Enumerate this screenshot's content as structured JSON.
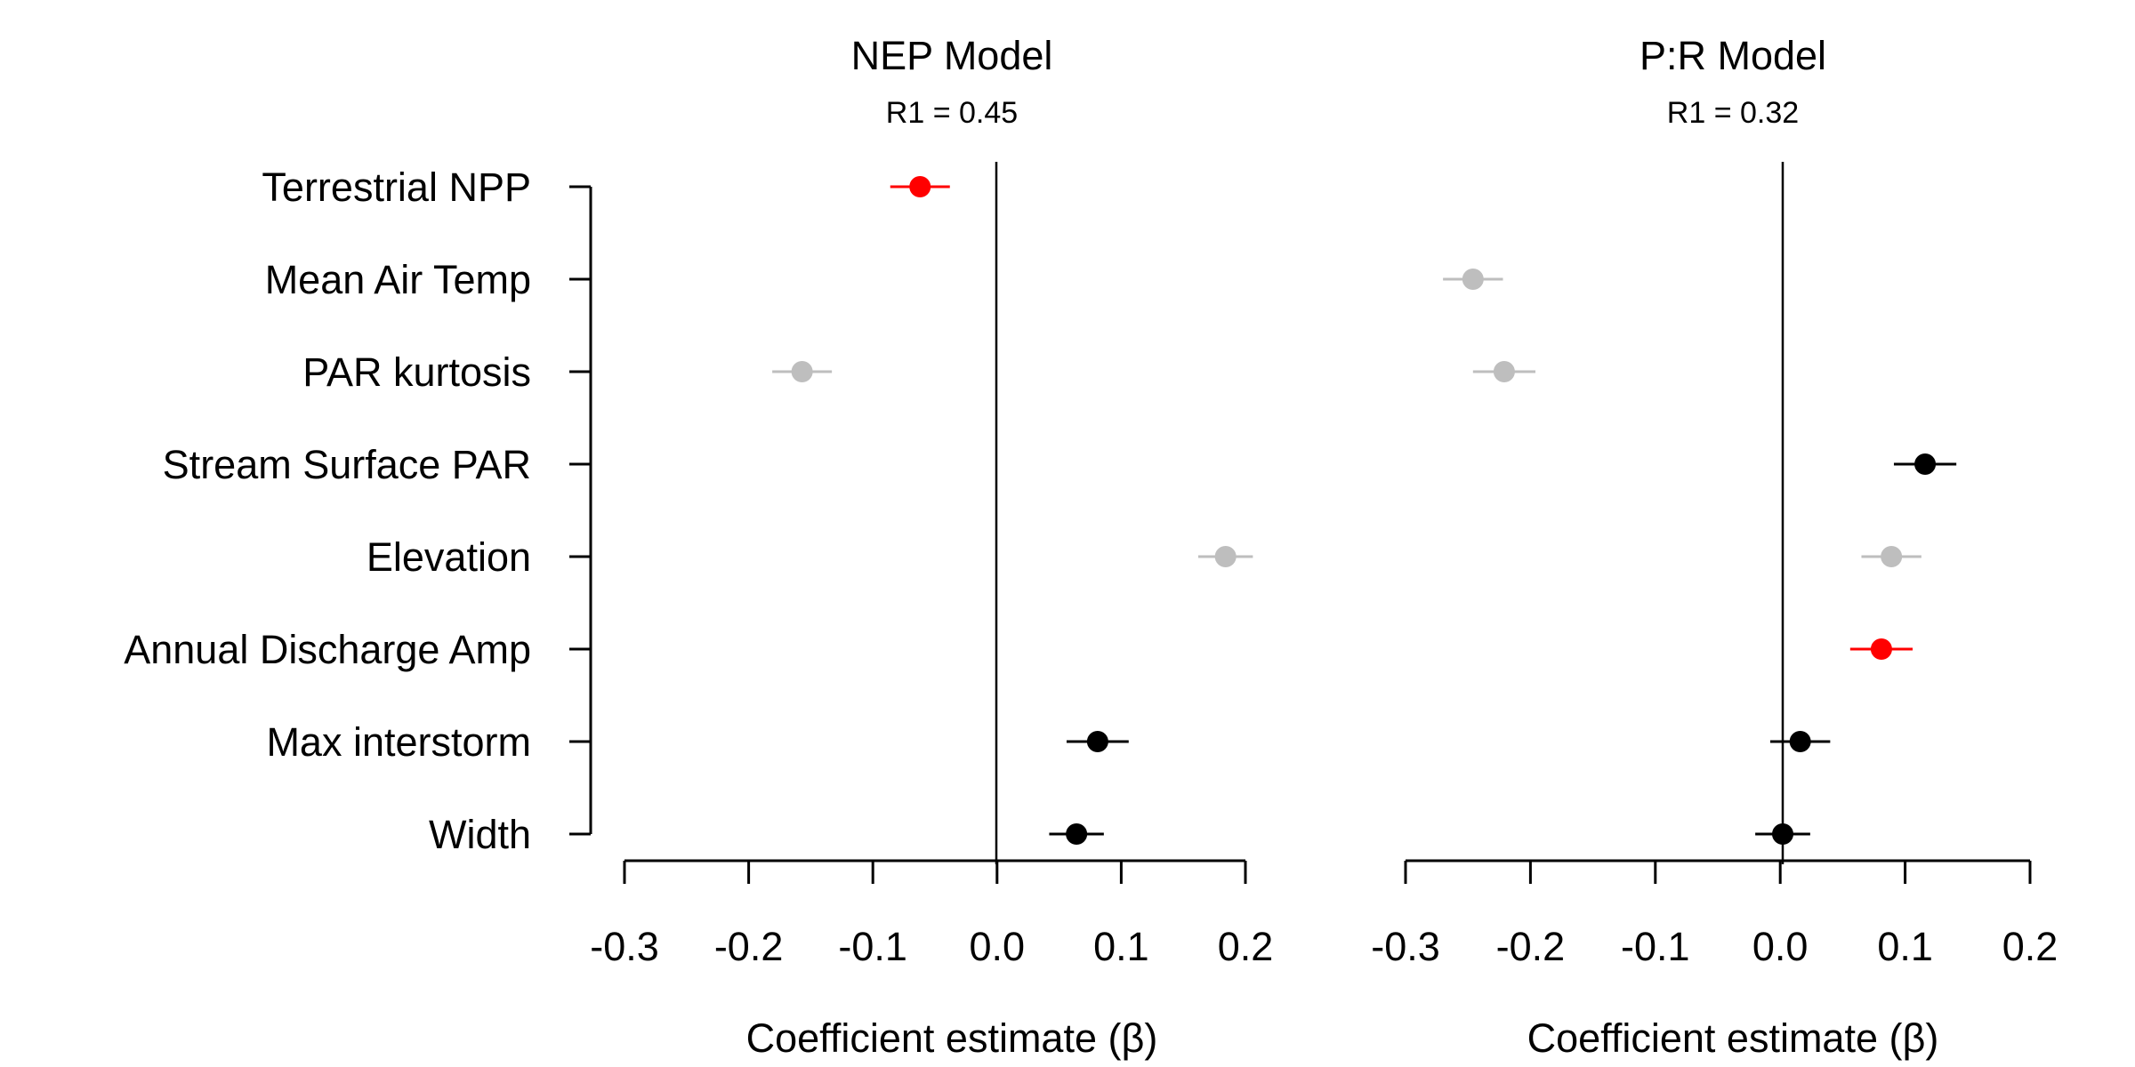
{
  "chart_data": [
    {
      "type": "scatter",
      "title": "NEP Model",
      "subtitle": "R1 = 0.45",
      "xlabel": "Coefficient estimate (β)",
      "ylabel": "",
      "xlim": [
        -0.3,
        0.2
      ],
      "xticks": [
        "-0.3",
        "-0.2",
        "-0.1",
        "0.0",
        "0.1",
        "0.2"
      ],
      "grid": false,
      "points": [
        {
          "label": "Terrestrial NPP",
          "estimate": -0.062,
          "low": -0.086,
          "high": -0.038,
          "color": "#ff0000"
        },
        {
          "label": "PAR kurtosis",
          "estimate": -0.157,
          "low": -0.181,
          "high": -0.133,
          "color": "#bebebe"
        },
        {
          "label": "Elevation",
          "estimate": 0.184,
          "low": 0.162,
          "high": 0.206,
          "color": "#bebebe"
        },
        {
          "label": "Max interstorm",
          "estimate": 0.081,
          "low": 0.056,
          "high": 0.106,
          "color": "#000000"
        },
        {
          "label": "Width",
          "estimate": 0.064,
          "low": 0.042,
          "high": 0.086,
          "color": "#000000"
        }
      ]
    },
    {
      "type": "scatter",
      "title": "P:R Model",
      "subtitle": "R1 = 0.32",
      "xlabel": "Coefficient estimate (β)",
      "ylabel": "",
      "xlim": [
        -0.3,
        0.2
      ],
      "xticks": [
        "-0.3",
        "-0.2",
        "-0.1",
        "0.0",
        "0.1",
        "0.2"
      ],
      "grid": false,
      "points": [
        {
          "label": "Mean Air Temp",
          "estimate": -0.246,
          "low": -0.27,
          "high": -0.222,
          "color": "#bebebe"
        },
        {
          "label": "PAR kurtosis",
          "estimate": -0.221,
          "low": -0.246,
          "high": -0.196,
          "color": "#bebebe"
        },
        {
          "label": "Stream Surface PAR",
          "estimate": 0.116,
          "low": 0.091,
          "high": 0.141,
          "color": "#000000"
        },
        {
          "label": "Elevation",
          "estimate": 0.089,
          "low": 0.065,
          "high": 0.113,
          "color": "#bebebe"
        },
        {
          "label": "Annual Discharge Amp",
          "estimate": 0.081,
          "low": 0.056,
          "high": 0.106,
          "color": "#ff0000"
        },
        {
          "label": "Max interstorm",
          "estimate": 0.016,
          "low": -0.008,
          "high": 0.04,
          "color": "#000000"
        },
        {
          "label": "Width",
          "estimate": 0.002,
          "low": -0.02,
          "high": 0.024,
          "color": "#000000"
        }
      ]
    }
  ],
  "y_categories": [
    "Terrestrial NPP",
    "Mean Air Temp",
    "PAR kurtosis",
    "Stream Surface PAR",
    "Elevation",
    "Annual Discharge Amp",
    "Max interstorm",
    "Width"
  ]
}
